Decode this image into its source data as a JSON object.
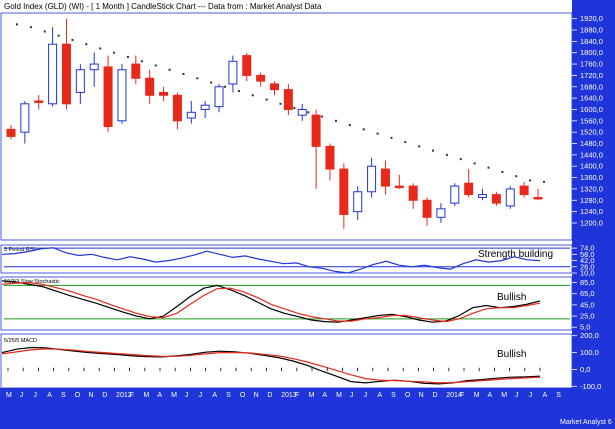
{
  "chart_data": [
    {
      "type": "candlestick",
      "title": "Gold Index (GLD) (WI) - [ 1 Month ] CandleStick Chart --- Data from : Market Analyst Data",
      "ylim": [
        1140,
        1940
      ],
      "y_ticks": [
        "1920,0",
        "1880,0",
        "1840,0",
        "1800,0",
        "1760,0",
        "1720,0",
        "1680,0",
        "1640,0",
        "1600,0",
        "1560,0",
        "1520,0",
        "1480,0",
        "1440,0",
        "1400,0",
        "1360,0",
        "1320,0",
        "1280,0",
        "1240,0",
        "1200,0"
      ],
      "x_labels": [
        "M",
        "J",
        "J",
        "A",
        "S",
        "O",
        "N",
        "D",
        "2012",
        "F",
        "M",
        "A",
        "M",
        "J",
        "J",
        "A",
        "S",
        "O",
        "N",
        "D",
        "2013",
        "F",
        "M",
        "A",
        "M",
        "J",
        "J",
        "A",
        "S",
        "O",
        "N",
        "D",
        "2014",
        "F",
        "M",
        "A",
        "M",
        "J",
        "J",
        "A",
        "S"
      ],
      "candles": [
        {
          "o": 1530,
          "h": 1545,
          "l": 1495,
          "c": 1505,
          "up": false
        },
        {
          "o": 1520,
          "h": 1630,
          "l": 1480,
          "c": 1620,
          "up": true
        },
        {
          "o": 1630,
          "h": 1650,
          "l": 1600,
          "c": 1625,
          "up": false
        },
        {
          "o": 1620,
          "h": 1890,
          "l": 1610,
          "c": 1830,
          "up": true
        },
        {
          "o": 1830,
          "h": 1920,
          "l": 1600,
          "c": 1620,
          "up": false
        },
        {
          "o": 1660,
          "h": 1760,
          "l": 1620,
          "c": 1740,
          "up": true
        },
        {
          "o": 1740,
          "h": 1800,
          "l": 1680,
          "c": 1760,
          "up": true
        },
        {
          "o": 1750,
          "h": 1790,
          "l": 1520,
          "c": 1540,
          "up": false
        },
        {
          "o": 1560,
          "h": 1760,
          "l": 1550,
          "c": 1740,
          "up": true
        },
        {
          "o": 1760,
          "h": 1790,
          "l": 1690,
          "c": 1710,
          "up": false
        },
        {
          "o": 1710,
          "h": 1740,
          "l": 1620,
          "c": 1650,
          "up": false
        },
        {
          "o": 1660,
          "h": 1680,
          "l": 1630,
          "c": 1650,
          "up": false
        },
        {
          "o": 1650,
          "h": 1660,
          "l": 1530,
          "c": 1560,
          "up": false
        },
        {
          "o": 1570,
          "h": 1630,
          "l": 1550,
          "c": 1590,
          "up": true
        },
        {
          "o": 1600,
          "h": 1630,
          "l": 1570,
          "c": 1615,
          "up": true
        },
        {
          "o": 1610,
          "h": 1690,
          "l": 1590,
          "c": 1680,
          "up": true
        },
        {
          "o": 1690,
          "h": 1790,
          "l": 1660,
          "c": 1770,
          "up": true
        },
        {
          "o": 1790,
          "h": 1800,
          "l": 1700,
          "c": 1720,
          "up": false
        },
        {
          "o": 1720,
          "h": 1730,
          "l": 1680,
          "c": 1700,
          "up": false
        },
        {
          "o": 1690,
          "h": 1700,
          "l": 1650,
          "c": 1670,
          "up": false
        },
        {
          "o": 1670,
          "h": 1690,
          "l": 1580,
          "c": 1600,
          "up": false
        },
        {
          "o": 1580,
          "h": 1620,
          "l": 1560,
          "c": 1600,
          "up": true
        },
        {
          "o": 1580,
          "h": 1600,
          "l": 1320,
          "c": 1470,
          "up": false
        },
        {
          "o": 1470,
          "h": 1480,
          "l": 1350,
          "c": 1390,
          "up": false
        },
        {
          "o": 1390,
          "h": 1410,
          "l": 1180,
          "c": 1230,
          "up": false
        },
        {
          "o": 1240,
          "h": 1330,
          "l": 1210,
          "c": 1310,
          "up": true
        },
        {
          "o": 1310,
          "h": 1430,
          "l": 1290,
          "c": 1400,
          "up": true
        },
        {
          "o": 1390,
          "h": 1420,
          "l": 1300,
          "c": 1330,
          "up": false
        },
        {
          "o": 1330,
          "h": 1370,
          "l": 1320,
          "c": 1330,
          "up": false
        },
        {
          "o": 1330,
          "h": 1340,
          "l": 1250,
          "c": 1280,
          "up": false
        },
        {
          "o": 1280,
          "h": 1290,
          "l": 1190,
          "c": 1220,
          "up": false
        },
        {
          "o": 1220,
          "h": 1270,
          "l": 1200,
          "c": 1250,
          "up": true
        },
        {
          "o": 1270,
          "h": 1340,
          "l": 1260,
          "c": 1330,
          "up": true
        },
        {
          "o": 1340,
          "h": 1390,
          "l": 1290,
          "c": 1300,
          "up": false
        },
        {
          "o": 1290,
          "h": 1320,
          "l": 1280,
          "c": 1300,
          "up": true
        },
        {
          "o": 1300,
          "h": 1310,
          "l": 1260,
          "c": 1270,
          "up": false
        },
        {
          "o": 1260,
          "h": 1330,
          "l": 1250,
          "c": 1320,
          "up": true
        },
        {
          "o": 1330,
          "h": 1345,
          "l": 1290,
          "c": 1300,
          "up": false
        },
        {
          "o": 1290,
          "h": 1320,
          "l": 1280,
          "c": 1285,
          "up": false
        }
      ],
      "sar_dots": [
        1900,
        1890,
        1875,
        1860,
        1845,
        1830,
        1815,
        1800,
        1785,
        1770,
        1755,
        1740,
        1725,
        1710,
        1695,
        1680,
        1665,
        1650,
        1635,
        1620,
        1605,
        1590,
        1575,
        1560,
        1545,
        1530,
        1515,
        1500,
        1485,
        1470,
        1455,
        1440,
        1425,
        1410,
        1395,
        1380,
        1365,
        1350,
        1345
      ]
    },
    {
      "type": "line",
      "title": "5 Period RSI",
      "annotation": "Strength building",
      "ylim": [
        10,
        82
      ],
      "y_ticks": [
        "74,0",
        "58,0",
        "42,0",
        "26,0",
        "10,0"
      ],
      "reference_lines": [
        74,
        26
      ],
      "series": [
        {
          "values": [
            58,
            60,
            65,
            72,
            75,
            62,
            55,
            58,
            50,
            44,
            52,
            46,
            38,
            42,
            48,
            56,
            66,
            58,
            50,
            54,
            46,
            40,
            34,
            36,
            26,
            22,
            14,
            10,
            20,
            32,
            40,
            30,
            26,
            30,
            24,
            20,
            34,
            44,
            38,
            42,
            52,
            44,
            42
          ]
        }
      ]
    },
    {
      "type": "line",
      "title": "10/3/3 Slow Stochastic",
      "annotation": "Bullish",
      "ylim": [
        0,
        95
      ],
      "y_ticks": [
        "85,0",
        "65,0",
        "45,0",
        "25,0",
        "5,0"
      ],
      "reference_lines": [
        80,
        20
      ],
      "series": [
        {
          "color": "#000000",
          "values": [
            88,
            86,
            82,
            78,
            70,
            62,
            55,
            48,
            40,
            32,
            25,
            20,
            25,
            42,
            60,
            75,
            80,
            72,
            62,
            50,
            38,
            30,
            24,
            18,
            15,
            14,
            18,
            22,
            26,
            28,
            24,
            18,
            14,
            16,
            26,
            40,
            44,
            40,
            42,
            46,
            52
          ]
        },
        {
          "color": "#e8291a",
          "values": [
            82,
            84,
            85,
            82,
            76,
            70,
            62,
            55,
            46,
            38,
            30,
            24,
            22,
            30,
            46,
            62,
            74,
            75,
            68,
            58,
            46,
            38,
            30,
            24,
            20,
            16,
            16,
            20,
            22,
            26,
            26,
            22,
            18,
            15,
            20,
            30,
            38,
            40,
            40,
            44,
            48
          ]
        }
      ]
    },
    {
      "type": "line",
      "title": "5/25/5 MACD",
      "annotation": "Bullish",
      "ylim": [
        -110,
        210
      ],
      "y_ticks": [
        "200,0",
        "100,0",
        "0,0",
        "-100,0"
      ],
      "series": [
        {
          "color": "#000000",
          "values": [
            100,
            120,
            130,
            128,
            118,
            108,
            100,
            94,
            88,
            80,
            76,
            74,
            80,
            90,
            102,
            108,
            104,
            96,
            84,
            70,
            50,
            24,
            -10,
            -40,
            -72,
            -80,
            -70,
            -64,
            -70,
            -82,
            -86,
            -80,
            -66,
            -60,
            -52,
            -46,
            -44,
            -40
          ]
        },
        {
          "color": "#e8291a",
          "values": [
            92,
            104,
            116,
            122,
            120,
            114,
            106,
            100,
            94,
            88,
            82,
            78,
            78,
            84,
            92,
            100,
            100,
            98,
            90,
            80,
            64,
            44,
            20,
            -6,
            -32,
            -54,
            -64,
            -66,
            -70,
            -74,
            -80,
            -78,
            -72,
            -66,
            -60,
            -54,
            -50,
            -46
          ]
        }
      ]
    }
  ],
  "footer": {
    "brand": "Market Analyst 6"
  },
  "colors": {
    "axis_bg": "#1f34d9",
    "up": "#1f34d9",
    "down": "#e8291a",
    "grid_line": "#1f34d9",
    "stoch_line": "#1a9a1a"
  }
}
